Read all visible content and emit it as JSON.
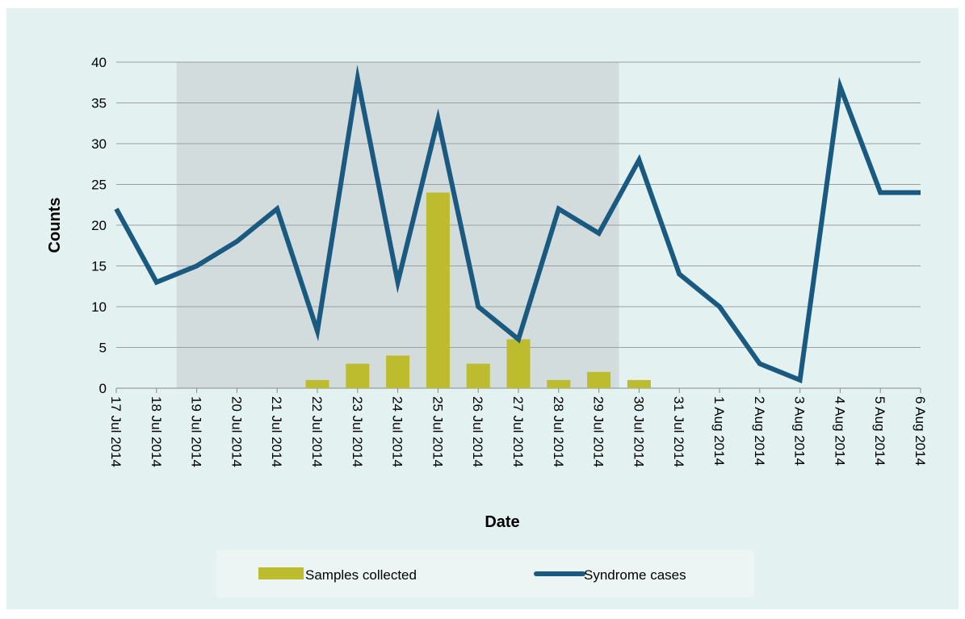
{
  "chart_data": {
    "type": "bar+line",
    "xlabel": "Date",
    "ylabel": "Counts",
    "ylim": [
      0,
      40
    ],
    "yticks": [
      0,
      5,
      10,
      15,
      20,
      25,
      30,
      35,
      40
    ],
    "grid": true,
    "legend_position": "bottom",
    "categories": [
      "17 Jul 2014",
      "18 Jul 2014",
      "19 Jul 2014",
      "20 Jul 2014",
      "21 Jul 2014",
      "22 Jul 2014",
      "23 Jul 2014",
      "24 Jul 2014",
      "25 Jul 2014",
      "26 Jul 2014",
      "27 Jul 2014",
      "28 Jul 2014",
      "29 Jul 2014",
      "30 Jul 2014",
      "31 Jul 2014",
      "1 Aug 2014",
      "2 Aug 2014",
      "3 Aug 2014",
      "4 Aug 2014",
      "5 Aug 2014",
      "6 Aug 2014"
    ],
    "highlight_range": [
      "18 Jul 2014",
      "29 Jul 2014"
    ],
    "highlight_color": "#d3dcdc",
    "series": [
      {
        "name": "Samples collected",
        "type": "bar",
        "color": "#bcbc2e",
        "values": [
          0,
          0,
          0,
          0,
          0,
          1,
          3,
          4,
          24,
          3,
          6,
          1,
          2,
          1,
          0,
          0,
          0,
          0,
          0,
          0,
          0
        ]
      },
      {
        "name": "Syndrome cases",
        "type": "line",
        "color": "#1b5a80",
        "values": [
          22,
          13,
          15,
          18,
          22,
          7,
          38,
          13,
          33,
          10,
          6,
          22,
          19,
          28,
          14,
          10,
          3,
          1,
          37,
          24,
          24
        ]
      }
    ]
  }
}
